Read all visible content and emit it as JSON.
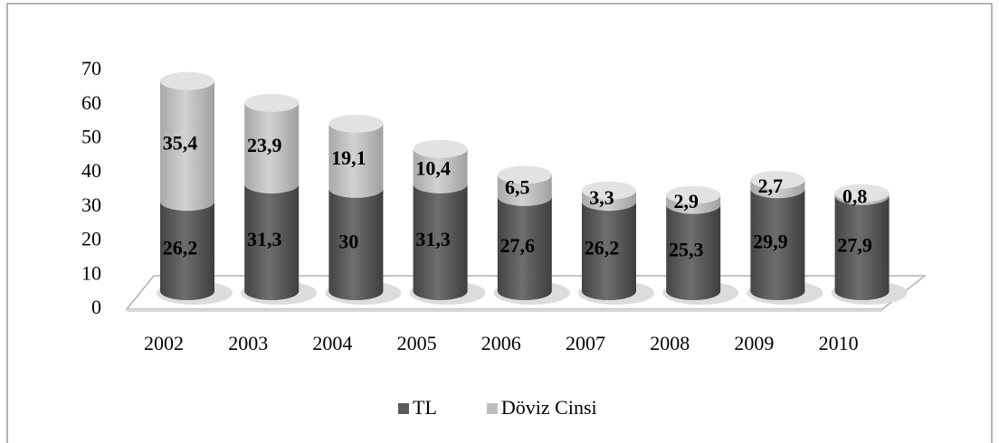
{
  "chart_data": {
    "type": "cylinder_stacked",
    "categories": [
      "2002",
      "2003",
      "2004",
      "2005",
      "2006",
      "2007",
      "2008",
      "2009",
      "2010"
    ],
    "series": [
      {
        "name": "TL",
        "color": "#5a5a5a",
        "values": [
          26.2,
          31.3,
          30,
          31.3,
          27.6,
          26.2,
          25.3,
          29.9,
          27.9
        ],
        "value_labels": [
          "26,2",
          "31,3",
          "30",
          "31,3",
          "27,6",
          "26,2",
          "25,3",
          "29,9",
          "27,9"
        ]
      },
      {
        "name": "Döviz Cinsi",
        "color": "#bdbdbd",
        "values": [
          35.4,
          23.9,
          19.1,
          10.4,
          6.5,
          3.3,
          2.9,
          2.7,
          0.8
        ],
        "value_labels": [
          "35,4",
          "23,9",
          "19,1",
          "10,4",
          "6,5",
          "3,3",
          "2,9",
          "2,7",
          "0,8"
        ]
      }
    ],
    "ylim": [
      0,
      70
    ],
    "yticks": [
      0,
      10,
      20,
      30,
      40,
      50,
      60,
      70
    ],
    "legend": "bottom"
  }
}
